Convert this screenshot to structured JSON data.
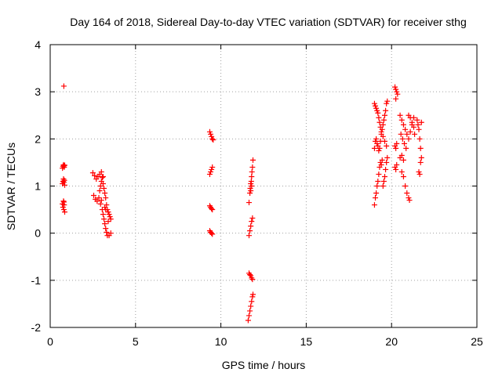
{
  "chart_data": {
    "type": "scatter",
    "title": "Day 164 of 2018, Sidereal Day-to-day VTEC variation (SDTVAR) for receiver sthg",
    "xlabel": "GPS time / hours",
    "ylabel": "SDTVAR / TECUs",
    "xlim": [
      0,
      25
    ],
    "ylim": [
      -2,
      4
    ],
    "xticks": [
      0,
      5,
      10,
      15,
      20,
      25
    ],
    "yticks": [
      -2,
      -1,
      0,
      1,
      2,
      3,
      4
    ],
    "grid": true,
    "marker": "+",
    "color": "#ff0000",
    "series": [
      {
        "name": "SDTVAR",
        "points": [
          [
            0.8,
            3.12
          ],
          [
            0.72,
            1.38
          ],
          [
            0.75,
            1.42
          ],
          [
            0.78,
            1.45
          ],
          [
            0.8,
            1.43
          ],
          [
            0.82,
            1.4
          ],
          [
            0.85,
            1.44
          ],
          [
            0.72,
            1.05
          ],
          [
            0.75,
            1.1
          ],
          [
            0.78,
            1.15
          ],
          [
            0.8,
            1.08
          ],
          [
            0.83,
            1.12
          ],
          [
            0.85,
            1.02
          ],
          [
            0.72,
            0.62
          ],
          [
            0.75,
            0.55
          ],
          [
            0.78,
            0.68
          ],
          [
            0.8,
            0.5
          ],
          [
            0.82,
            0.6
          ],
          [
            0.85,
            0.45
          ],
          [
            0.8,
            0.66
          ],
          [
            2.5,
            1.28
          ],
          [
            2.6,
            1.22
          ],
          [
            2.7,
            1.15
          ],
          [
            2.8,
            1.2
          ],
          [
            2.9,
            1.25
          ],
          [
            3.0,
            1.3
          ],
          [
            3.05,
            1.18
          ],
          [
            2.55,
            0.8
          ],
          [
            2.65,
            0.72
          ],
          [
            2.75,
            0.68
          ],
          [
            2.85,
            0.75
          ],
          [
            2.95,
            0.62
          ],
          [
            3.0,
            0.7
          ],
          [
            3.1,
            1.05
          ],
          [
            3.15,
            0.95
          ],
          [
            3.2,
            0.85
          ],
          [
            3.25,
            0.75
          ],
          [
            3.3,
            0.6
          ],
          [
            3.35,
            0.5
          ],
          [
            3.4,
            0.45
          ],
          [
            3.45,
            0.4
          ],
          [
            3.5,
            0.35
          ],
          [
            3.55,
            0.3
          ],
          [
            3.05,
            0.5
          ],
          [
            3.1,
            0.4
          ],
          [
            3.15,
            0.3
          ],
          [
            3.2,
            0.2
          ],
          [
            3.25,
            0.1
          ],
          [
            3.3,
            0.02
          ],
          [
            3.35,
            -0.05
          ],
          [
            3.45,
            -0.05
          ],
          [
            3.55,
            0.0
          ],
          [
            3.2,
            0.55
          ],
          [
            3.25,
            0.5
          ],
          [
            3.4,
            0.25
          ],
          [
            2.9,
            0.9
          ],
          [
            2.95,
            1.0
          ],
          [
            3.0,
            1.1
          ],
          [
            3.1,
            1.2
          ],
          [
            9.35,
            2.15
          ],
          [
            9.4,
            2.1
          ],
          [
            9.45,
            2.05
          ],
          [
            9.5,
            2.0
          ],
          [
            9.55,
            1.98
          ],
          [
            9.35,
            1.25
          ],
          [
            9.4,
            1.3
          ],
          [
            9.45,
            1.35
          ],
          [
            9.5,
            1.4
          ],
          [
            9.35,
            0.58
          ],
          [
            9.4,
            0.55
          ],
          [
            9.45,
            0.52
          ],
          [
            9.5,
            0.5
          ],
          [
            9.35,
            0.05
          ],
          [
            9.4,
            0.02
          ],
          [
            9.45,
            0.0
          ],
          [
            9.5,
            -0.02
          ],
          [
            11.65,
            0.65
          ],
          [
            11.7,
            0.85
          ],
          [
            11.72,
            0.95
          ],
          [
            11.75,
            1.05
          ],
          [
            11.78,
            1.1
          ],
          [
            11.8,
            1.2
          ],
          [
            11.82,
            1.3
          ],
          [
            11.85,
            1.4
          ],
          [
            11.88,
            1.55
          ],
          [
            11.75,
            0.9
          ],
          [
            11.8,
            1.0
          ],
          [
            11.65,
            -0.05
          ],
          [
            11.7,
            0.05
          ],
          [
            11.75,
            0.15
          ],
          [
            11.8,
            0.25
          ],
          [
            11.85,
            0.32
          ],
          [
            11.65,
            -0.85
          ],
          [
            11.7,
            -0.88
          ],
          [
            11.75,
            -0.9
          ],
          [
            11.8,
            -0.95
          ],
          [
            11.85,
            -0.98
          ],
          [
            11.6,
            -1.85
          ],
          [
            11.65,
            -1.75
          ],
          [
            11.7,
            -1.65
          ],
          [
            11.75,
            -1.55
          ],
          [
            11.8,
            -1.45
          ],
          [
            11.85,
            -1.35
          ],
          [
            11.88,
            -1.3
          ],
          [
            19.0,
            0.6
          ],
          [
            19.05,
            0.75
          ],
          [
            19.1,
            0.85
          ],
          [
            19.15,
            1.0
          ],
          [
            19.2,
            1.1
          ],
          [
            19.25,
            1.25
          ],
          [
            19.3,
            1.4
          ],
          [
            19.35,
            1.5
          ],
          [
            19.4,
            1.45
          ],
          [
            19.45,
            1.55
          ],
          [
            19.0,
            1.8
          ],
          [
            19.05,
            1.95
          ],
          [
            19.1,
            2.0
          ],
          [
            19.15,
            1.9
          ],
          [
            19.2,
            1.85
          ],
          [
            19.25,
            1.75
          ],
          [
            19.3,
            1.8
          ],
          [
            19.35,
            1.95
          ],
          [
            19.4,
            2.1
          ],
          [
            19.45,
            2.2
          ],
          [
            19.5,
            2.3
          ],
          [
            19.55,
            2.4
          ],
          [
            19.6,
            2.5
          ],
          [
            19.65,
            2.6
          ],
          [
            19.7,
            2.75
          ],
          [
            19.75,
            2.8
          ],
          [
            19.0,
            2.75
          ],
          [
            19.05,
            2.7
          ],
          [
            19.1,
            2.65
          ],
          [
            19.15,
            2.6
          ],
          [
            19.2,
            2.55
          ],
          [
            19.25,
            2.45
          ],
          [
            19.3,
            2.35
          ],
          [
            19.35,
            2.25
          ],
          [
            19.4,
            2.15
          ],
          [
            19.5,
            2.05
          ],
          [
            19.6,
            1.95
          ],
          [
            19.7,
            1.85
          ],
          [
            19.5,
            1.0
          ],
          [
            19.55,
            1.1
          ],
          [
            19.6,
            1.2
          ],
          [
            19.65,
            1.35
          ],
          [
            19.7,
            1.5
          ],
          [
            19.75,
            1.6
          ],
          [
            20.2,
            3.1
          ],
          [
            20.25,
            3.05
          ],
          [
            20.3,
            3.0
          ],
          [
            20.35,
            2.95
          ],
          [
            20.25,
            2.85
          ],
          [
            20.2,
            1.85
          ],
          [
            20.25,
            1.8
          ],
          [
            20.3,
            1.9
          ],
          [
            20.2,
            1.4
          ],
          [
            20.25,
            1.35
          ],
          [
            20.3,
            1.45
          ],
          [
            20.6,
            1.3
          ],
          [
            20.7,
            1.2
          ],
          [
            20.8,
            1.0
          ],
          [
            20.9,
            0.85
          ],
          [
            21.0,
            0.75
          ],
          [
            21.05,
            0.7
          ],
          [
            20.5,
            2.5
          ],
          [
            20.6,
            2.4
          ],
          [
            20.7,
            2.3
          ],
          [
            20.8,
            2.2
          ],
          [
            20.9,
            2.1
          ],
          [
            21.0,
            2.0
          ],
          [
            21.1,
            2.15
          ],
          [
            21.2,
            2.3
          ],
          [
            21.3,
            2.45
          ],
          [
            20.55,
            2.1
          ],
          [
            20.65,
            2.0
          ],
          [
            20.75,
            1.9
          ],
          [
            20.85,
            1.8
          ],
          [
            20.5,
            1.6
          ],
          [
            20.6,
            1.65
          ],
          [
            20.7,
            1.55
          ],
          [
            21.0,
            2.5
          ],
          [
            21.1,
            2.45
          ],
          [
            21.2,
            2.35
          ],
          [
            21.3,
            2.25
          ],
          [
            21.35,
            2.1
          ],
          [
            21.5,
            2.4
          ],
          [
            21.55,
            2.3
          ],
          [
            21.6,
            2.2
          ],
          [
            21.65,
            2.0
          ],
          [
            21.7,
            1.8
          ],
          [
            21.75,
            1.6
          ],
          [
            21.6,
            1.3
          ],
          [
            21.65,
            1.25
          ],
          [
            21.7,
            1.5
          ],
          [
            21.75,
            2.35
          ]
        ]
      }
    ]
  }
}
